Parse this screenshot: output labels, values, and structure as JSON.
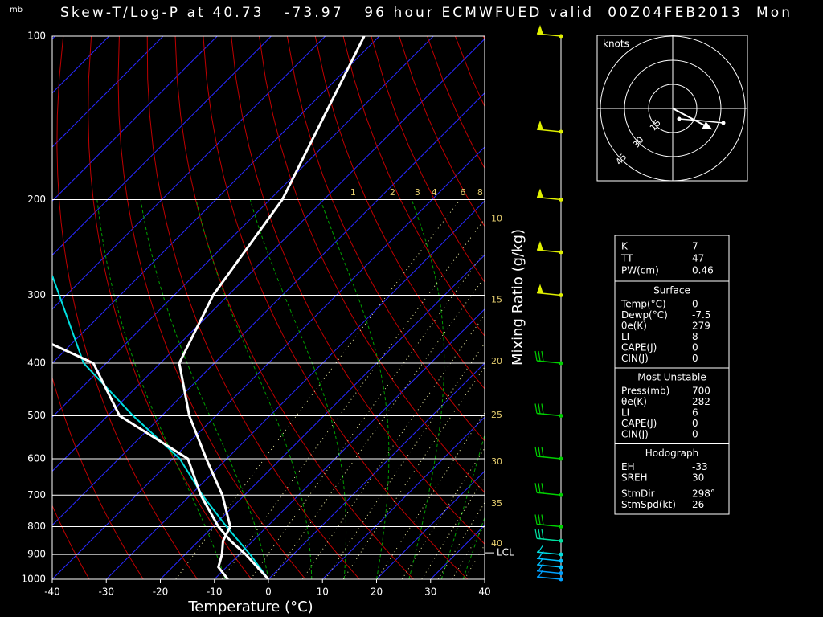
{
  "chart_data": {
    "type": "skewt",
    "title": "Skew-T/Log-P at 40.73   -73.97   96 hour ECMWFUED valid  00Z04FEB2013  Mon",
    "y_unit": "mb",
    "xlabel": "Temperature (°C)",
    "y2label": "Mixing Ratio (g/kg)",
    "xlim": [
      -40,
      40
    ],
    "xticks": [
      -40,
      -30,
      -20,
      -10,
      0,
      10,
      20,
      30,
      40
    ],
    "ylim": [
      1000,
      100
    ],
    "yticks": [
      100,
      200,
      300,
      400,
      500,
      600,
      700,
      800,
      900,
      1000
    ],
    "log_y": true,
    "grid": true,
    "series": [
      {
        "color": "#00e0e0",
        "pressure": [
          276,
          400,
          500,
          600,
          700,
          800,
          900,
          1000
        ],
        "values": [
          -96.2,
          -74.2,
          -55.3,
          -38.7,
          -27.8,
          -17.5,
          -8,
          0
        ]
      },
      {
        "color": "#ffffff",
        "pressure": [
          369,
          400,
          500,
          600,
          700,
          800,
          850,
          900,
          1000
        ],
        "values": [
          -83.6,
          -72.4,
          -57.8,
          -37.2,
          -28.1,
          -19,
          -14.1,
          -8.8,
          0
        ]
      },
      {
        "color": "#ffffff",
        "pressure": [
          100,
          200,
          300,
          400,
          500,
          600,
          700,
          800,
          850,
          900,
          950,
          1000
        ],
        "values": [
          -82.8,
          -67.7,
          -62.8,
          -56.5,
          -44.9,
          -33.8,
          -24.1,
          -16.8,
          -15.5,
          -13.2,
          -11.5,
          -7.5
        ]
      }
    ],
    "mixing_ratio_top": [
      {
        "value": -54.6,
        "label": "1"
      },
      {
        "value": -47.3,
        "label": "2"
      },
      {
        "value": -42.7,
        "label": "3"
      },
      {
        "value": -39.6,
        "label": "4"
      },
      {
        "value": -34.3,
        "label": "6"
      },
      {
        "value": -31.1,
        "label": "8"
      }
    ],
    "mixing_ratio_right": [
      {
        "value": 217,
        "label": "10"
      },
      {
        "value": 306,
        "label": "15"
      },
      {
        "value": 397,
        "label": "20"
      },
      {
        "value": 499,
        "label": "25"
      },
      {
        "value": 608,
        "label": "30"
      },
      {
        "value": 726,
        "label": "35"
      },
      {
        "value": 861,
        "label": "40"
      }
    ],
    "lcl": {
      "label": "LCL",
      "pressure": 894
    },
    "wind_levels": [
      100,
      150,
      200,
      250,
      300,
      400,
      500,
      600,
      700,
      800,
      850,
      900,
      925,
      950,
      975,
      1000
    ],
    "wind_colors": [
      "#e0f000",
      "#e0f000",
      "#e0f000",
      "#e0f000",
      "#e0f000",
      "#00d000",
      "#00d000",
      "#00d000",
      "#00d000",
      "#00d000",
      "#00e0a0",
      "#00e0e0",
      "#00c0ff",
      "#00c0ff",
      "#00a0ff",
      "#00a0ff"
    ]
  },
  "hodograph": {
    "unit": "knots",
    "rings": [
      15,
      30,
      45
    ]
  },
  "info_panel": {
    "top": [
      [
        "K",
        7
      ],
      [
        "TT",
        47
      ],
      [
        "PW(cm)",
        0.46
      ]
    ],
    "sections": [
      {
        "title": "Surface",
        "rows": [
          [
            "Temp(°C)",
            0
          ],
          [
            "Dewp(°C)",
            -7.5
          ],
          [
            "θe(K)",
            279
          ],
          [
            "LI",
            8
          ],
          [
            "CAPE(J)",
            0
          ],
          [
            "CIN(J)",
            0
          ]
        ]
      },
      {
        "title": "Most Unstable",
        "rows": [
          [
            "Press(mb)",
            700
          ],
          [
            "θe(K)",
            282
          ],
          [
            "LI",
            6
          ],
          [
            "CAPE(J)",
            0
          ],
          [
            "CIN(J)",
            0
          ]
        ]
      },
      {
        "title": "Hodograph",
        "rows": [
          [
            "EH",
            -33
          ],
          [
            "SREH",
            30
          ],
          [
            "StmDir",
            {
              "value": 298,
              "label": "298°"
            }
          ],
          [
            "StmSpd(kt)",
            26
          ]
        ]
      }
    ]
  }
}
